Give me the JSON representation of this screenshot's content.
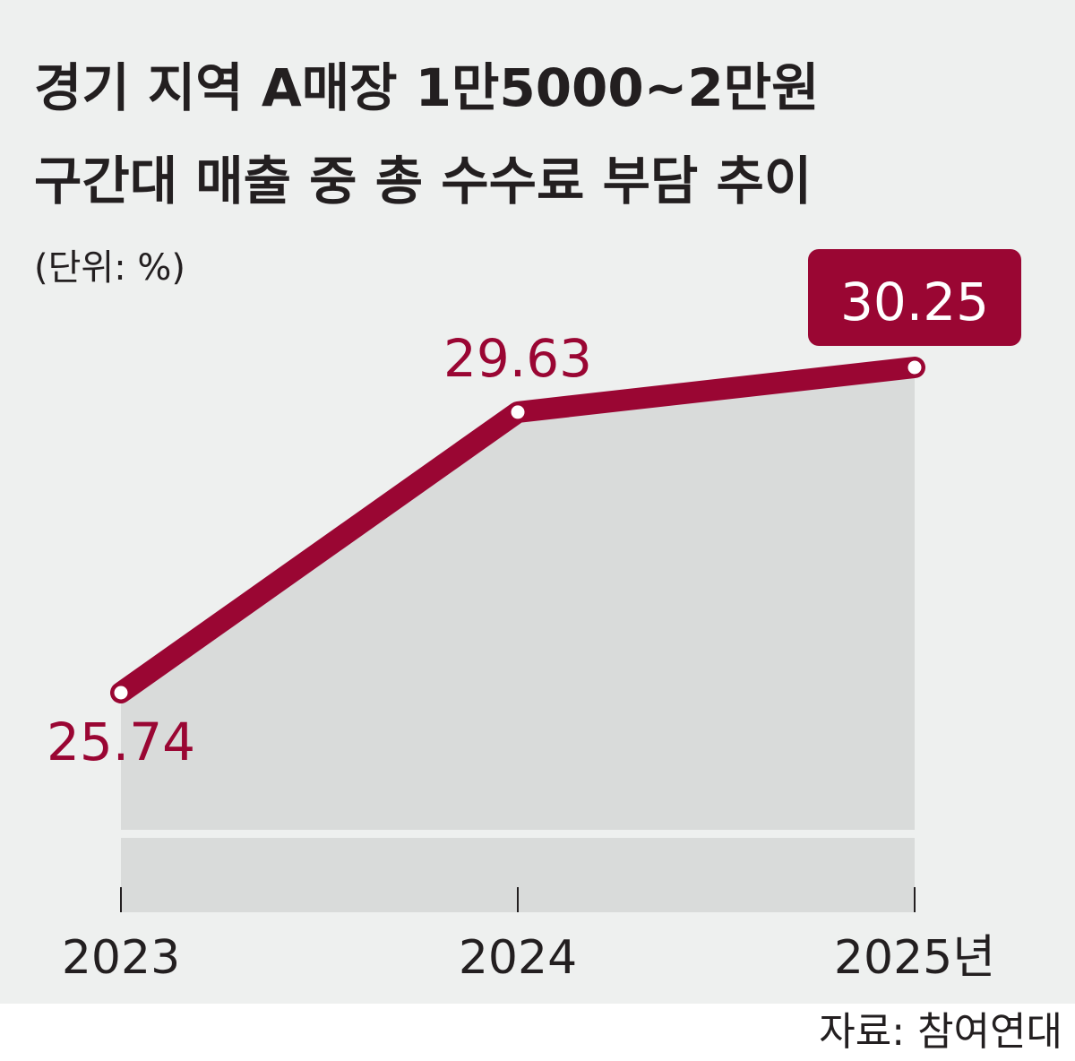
{
  "title_lines": [
    "경기 지역 A매장 1만5000~2만원",
    "구간대 매출 중 총 수수료 부담 추이"
  ],
  "unit": "(단위: %)",
  "source": "자료: 참여연대",
  "chart_data": {
    "type": "area",
    "title": "경기 지역 A매장 1만5000~2만원 구간대 매출 중 총 수수료 부담 추이",
    "unit": "%",
    "categories": [
      "2023",
      "2024",
      "2025"
    ],
    "tick_labels": [
      "2023",
      "2024",
      "2025년"
    ],
    "values": [
      25.74,
      29.63,
      30.25
    ],
    "value_labels": [
      "25.74",
      "29.63",
      "30.25"
    ],
    "highlight_index": 2,
    "colors": {
      "line": "#9a0633",
      "area": "#d9dbda",
      "background": "#eef0ef",
      "highlight_label_bg": "#9a0633",
      "highlight_label_text": "#ffffff",
      "text": "#231f20"
    }
  }
}
